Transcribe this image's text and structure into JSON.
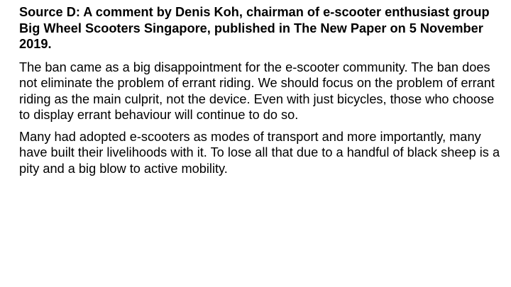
{
  "document": {
    "heading": "Source D: A comment by Denis Koh, chairman of e-scooter enthusiast group Big Wheel Scooters Singapore, published in The New Paper on 5 November 2019.",
    "paragraphs": [
      "The ban came as a big disappointment for the e-scooter community. The ban does not eliminate the problem of errant riding. We should focus on the problem of errant riding as the main culprit, not the device. Even with just bicycles, those who choose to display errant behaviour will continue to do so.",
      "Many had adopted e-scooters as modes of transport and more importantly, many have built their livelihoods with it. To lose all that due to a handful of black sheep is a pity and a big blow to active mobility."
    ]
  }
}
